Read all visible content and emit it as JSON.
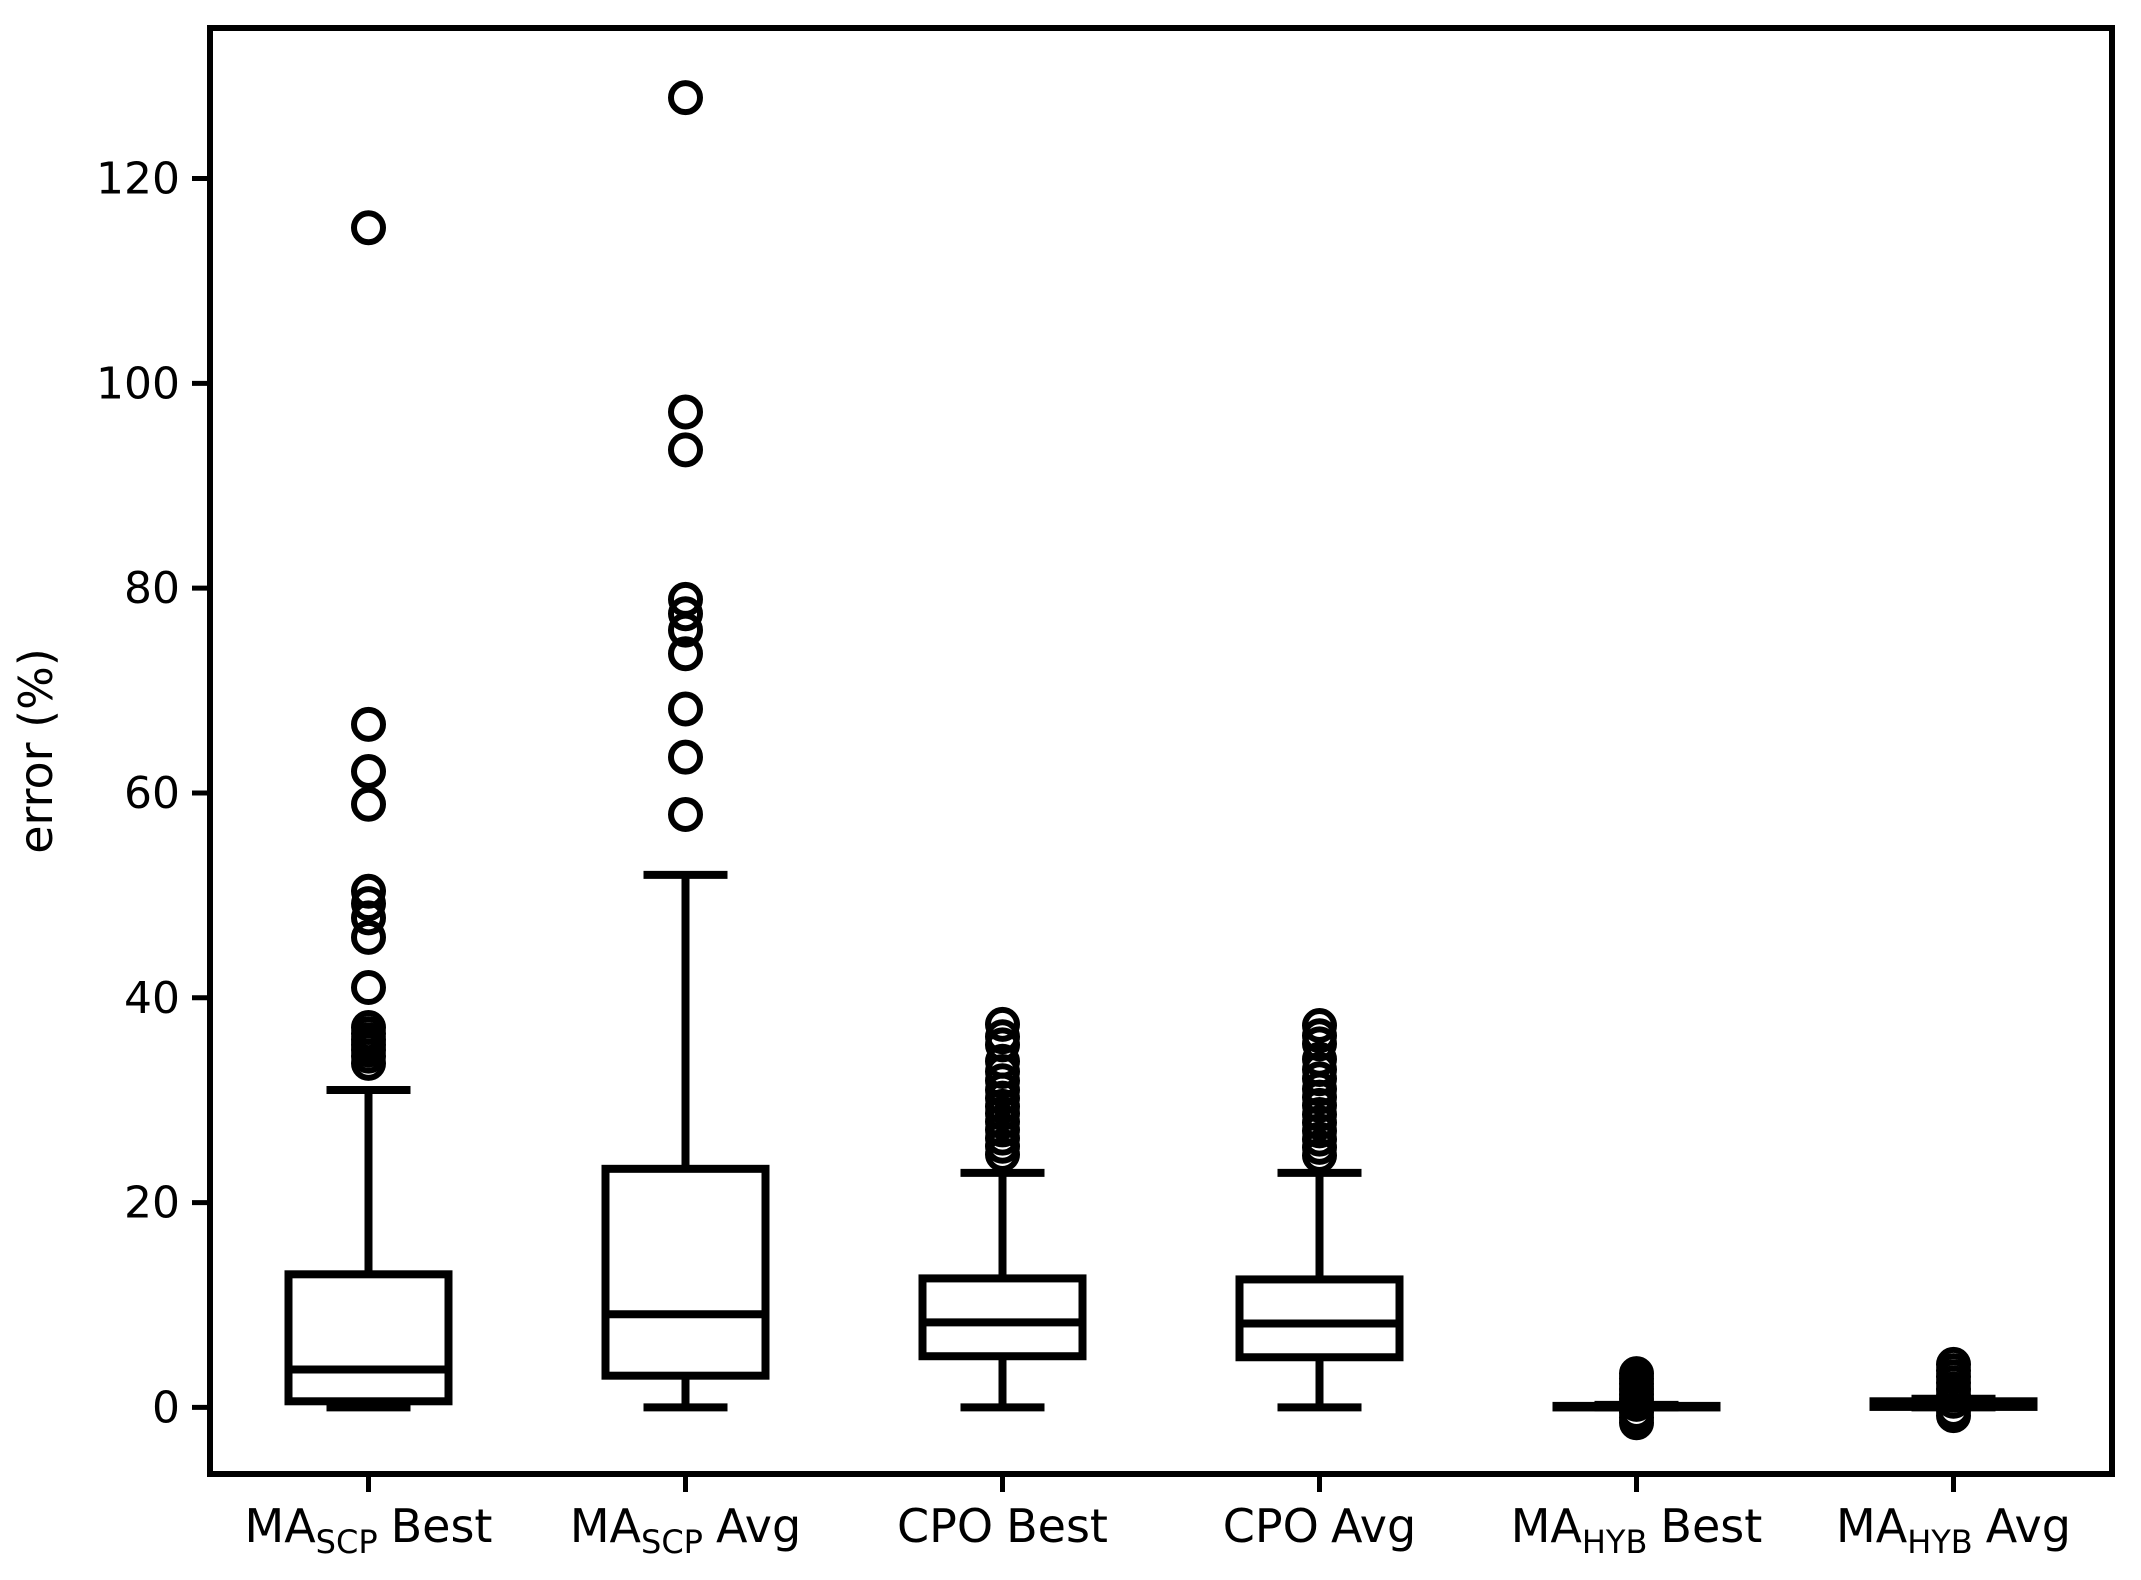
{
  "chart_data": {
    "type": "boxplot",
    "title": "",
    "ylabel": "error (%)",
    "xlabel": "",
    "yticks": [
      0,
      20,
      40,
      60,
      80,
      100,
      120
    ],
    "ylim": [
      -6.5,
      134.7
    ],
    "grid": false,
    "ink_color": "#000000",
    "background_color": "#ffffff",
    "categories": [
      {
        "main": "MA",
        "sub": "SCP",
        "tail": "Best"
      },
      {
        "main": "MA",
        "sub": "SCP",
        "tail": "Avg"
      },
      {
        "main": "CPO",
        "sub": "",
        "tail": "Best"
      },
      {
        "main": "CPO",
        "sub": "",
        "tail": "Avg"
      },
      {
        "main": "MA",
        "sub": "HYB",
        "tail": "Best"
      },
      {
        "main": "MA",
        "sub": "HYB",
        "tail": "Avg"
      }
    ],
    "series": [
      {
        "name": "MA_SCP Best",
        "whislo": 0,
        "q1": 0.6,
        "med": 3.7,
        "q3": 13.0,
        "whishi": 31.0,
        "fliers": [
          33.6,
          34.3,
          34.9,
          35.4,
          35.9,
          36.5,
          37.1,
          41.0,
          45.9,
          47.8,
          49.2,
          50.4,
          58.9,
          62.1,
          66.7,
          115.2
        ]
      },
      {
        "name": "MA_SCP Avg",
        "whislo": 0,
        "q1": 3.1,
        "med": 9.1,
        "q3": 23.3,
        "whishi": 52.0,
        "fliers": [
          57.9,
          63.5,
          68.2,
          73.6,
          75.9,
          77.5,
          78.9,
          93.5,
          97.2,
          127.9
        ]
      },
      {
        "name": "CPO Best",
        "whislo": 0,
        "q1": 5.0,
        "med": 8.3,
        "q3": 12.6,
        "whishi": 22.9,
        "fliers": [
          24.7,
          25.5,
          26.3,
          27.1,
          27.9,
          28.7,
          29.4,
          30.2,
          31.0,
          31.9,
          32.8,
          33.8,
          35.4,
          36.2,
          37.4
        ]
      },
      {
        "name": "CPO Avg",
        "whislo": 0,
        "q1": 4.9,
        "med": 8.2,
        "q3": 12.5,
        "whishi": 22.9,
        "fliers": [
          24.6,
          25.4,
          26.2,
          27.0,
          27.8,
          28.6,
          29.5,
          30.3,
          31.1,
          32.1,
          33.0,
          34.0,
          35.5,
          36.3,
          37.3
        ]
      },
      {
        "name": "MA_HYB Best",
        "whislo": 0,
        "q1": 0.0,
        "med": 0.05,
        "q3": 0.15,
        "whishi": 0.25,
        "fliers": [
          -1.5,
          -1.0,
          -0.5,
          0.3,
          0.8,
          1.3,
          1.8,
          2.3,
          2.8,
          3.3
        ]
      },
      {
        "name": "MA_HYB Avg",
        "whislo": 0,
        "q1": 0.05,
        "med": 0.3,
        "q3": 0.6,
        "whishi": 0.85,
        "fliers": [
          -0.8,
          -0.3,
          0.6,
          1.2,
          1.8,
          2.4,
          3.0,
          3.6,
          4.2
        ]
      }
    ]
  }
}
